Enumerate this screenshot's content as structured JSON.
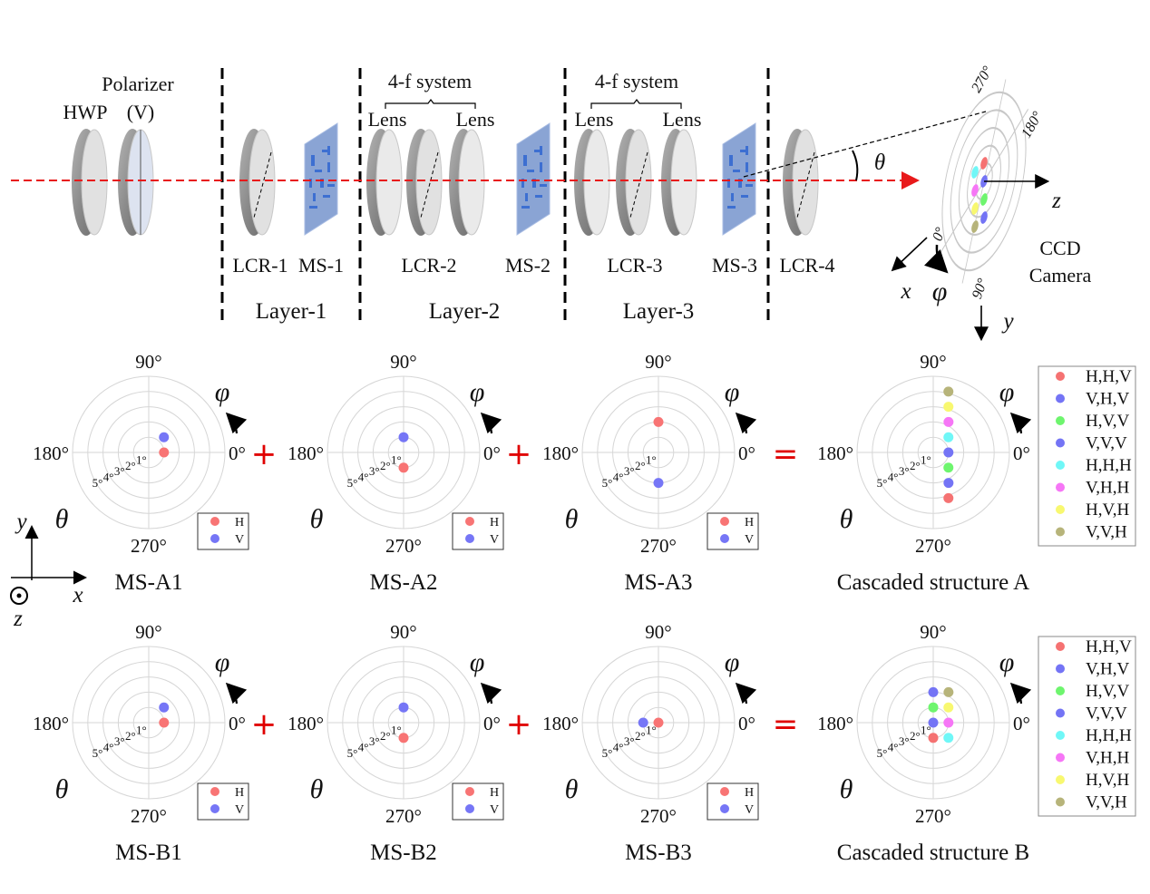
{
  "setup": {
    "polarizer_label": "Polarizer",
    "polarizer_state": "(V)",
    "hwp_label": "HWP",
    "four_f_1": "4-f system",
    "four_f_2": "4-f system",
    "lens_labels": [
      "Lens",
      "Lens",
      "Lens",
      "Lens"
    ],
    "component_labels": [
      "LCR-1",
      "MS-1",
      "LCR-2",
      "MS-2",
      "LCR-3",
      "MS-3",
      "LCR-4"
    ],
    "layer_labels": [
      "Layer-1",
      "Layer-2",
      "Layer-3"
    ],
    "theta_symbol": "θ",
    "phi_symbol": "φ",
    "camera_label_line1": "CCD",
    "camera_label_line2": "Camera",
    "camera_angle_labels": [
      "270°",
      "180°",
      "0°",
      "90°"
    ],
    "axis_labels": {
      "x": "x",
      "y": "y",
      "z": "z"
    },
    "beam_color": "#e8191a"
  },
  "coord_legend": {
    "x": "x",
    "y": "y",
    "z": "z"
  },
  "operators": [
    "+",
    "+",
    "=",
    "+",
    "+",
    "="
  ],
  "polar_common": {
    "angle_labels": [
      "90°",
      "0°",
      "270°",
      "180°"
    ],
    "ring_labels": [
      "1°",
      "2°",
      "3°",
      "4°",
      "5°"
    ],
    "radial_axis_symbol": "θ",
    "angular_axis_symbol": "φ",
    "r_max_deg": 5
  },
  "chart_data": [
    {
      "type": "scatter",
      "coords": "polar",
      "title": "MS-A1",
      "legend": "bottom-right",
      "points": [
        {
          "label": "H",
          "theta": 1,
          "phi": 0,
          "color": "#f87474"
        },
        {
          "label": "V",
          "theta": 1.41,
          "phi": 45,
          "color": "#7676f6"
        }
      ]
    },
    {
      "type": "scatter",
      "coords": "polar",
      "title": "MS-A2",
      "legend": "bottom-right",
      "points": [
        {
          "label": "H",
          "theta": 1,
          "phi": 270,
          "color": "#f87474"
        },
        {
          "label": "V",
          "theta": 1,
          "phi": 90,
          "color": "#7676f6"
        }
      ]
    },
    {
      "type": "scatter",
      "coords": "polar",
      "title": "MS-A3",
      "legend": "bottom-right",
      "points": [
        {
          "label": "H",
          "theta": 2,
          "phi": 90,
          "color": "#f87474"
        },
        {
          "label": "V",
          "theta": 2,
          "phi": 270,
          "color": "#7676f6"
        }
      ]
    },
    {
      "type": "scatter",
      "coords": "polar",
      "title": "Cascaded structure A",
      "legend": "right",
      "points": [
        {
          "label": "H,H,V",
          "theta": 3.16,
          "phi": 288.4,
          "color": "#f57272"
        },
        {
          "label": "V,H,V",
          "theta": 2.24,
          "phi": 296.6,
          "color": "#7474f5"
        },
        {
          "label": "H,V,V",
          "theta": 1.41,
          "phi": 315,
          "color": "#6ef56e"
        },
        {
          "label": "V,V,V",
          "theta": 1,
          "phi": 0,
          "color": "#7474f5"
        },
        {
          "label": "H,H,H",
          "theta": 1.41,
          "phi": 45,
          "color": "#70f7f7"
        },
        {
          "label": "V,H,H",
          "theta": 2.24,
          "phi": 63.4,
          "color": "#f676f6"
        },
        {
          "label": "H,V,H",
          "theta": 3.16,
          "phi": 71.6,
          "color": "#f8f870"
        },
        {
          "label": "V,V,H",
          "theta": 4.12,
          "phi": 76.0,
          "color": "#b7b47a"
        }
      ]
    },
    {
      "type": "scatter",
      "coords": "polar",
      "title": "MS-B1",
      "legend": "bottom-right",
      "points": [
        {
          "label": "H",
          "theta": 1,
          "phi": 0,
          "color": "#f87474"
        },
        {
          "label": "V",
          "theta": 1.41,
          "phi": 45,
          "color": "#7676f6"
        }
      ]
    },
    {
      "type": "scatter",
      "coords": "polar",
      "title": "MS-B2",
      "legend": "bottom-right",
      "points": [
        {
          "label": "H",
          "theta": 1,
          "phi": 270,
          "color": "#f87474"
        },
        {
          "label": "V",
          "theta": 1,
          "phi": 90,
          "color": "#7676f6"
        }
      ]
    },
    {
      "type": "scatter",
      "coords": "polar",
      "title": "MS-B3",
      "legend": "bottom-right",
      "points": [
        {
          "label": "H",
          "theta": 0,
          "phi": 0,
          "color": "#f87474"
        },
        {
          "label": "V",
          "theta": 1,
          "phi": 180,
          "color": "#7676f6"
        }
      ]
    },
    {
      "type": "scatter",
      "coords": "polar",
      "title": "Cascaded structure B",
      "legend": "right",
      "points": [
        {
          "label": "H,H,V",
          "theta": 1,
          "phi": 270,
          "color": "#f57272"
        },
        {
          "label": "V,H,V",
          "theta": 0,
          "phi": 0,
          "color": "#7474f5"
        },
        {
          "label": "H,V,V",
          "theta": 1,
          "phi": 90,
          "color": "#6ef56e"
        },
        {
          "label": "V,V,V",
          "theta": 2,
          "phi": 90,
          "color": "#7474f5"
        },
        {
          "label": "H,H,H",
          "theta": 1.41,
          "phi": 315,
          "color": "#70f7f7"
        },
        {
          "label": "V,H,H",
          "theta": 1,
          "phi": 0,
          "color": "#f676f6"
        },
        {
          "label": "H,V,H",
          "theta": 1.41,
          "phi": 45,
          "color": "#f8f870"
        },
        {
          "label": "V,V,H",
          "theta": 2.24,
          "phi": 63.4,
          "color": "#b7b47a"
        }
      ]
    }
  ]
}
